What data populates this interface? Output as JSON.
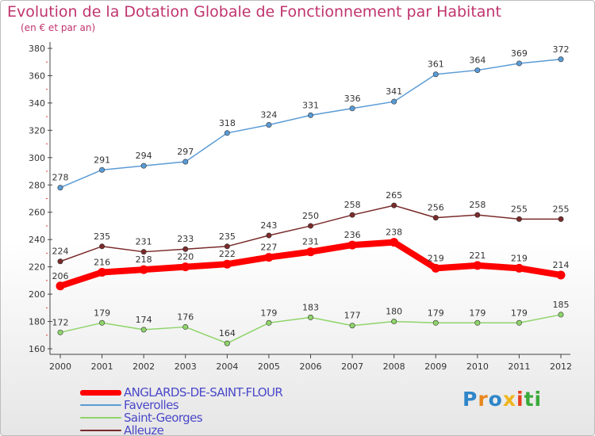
{
  "title": "Evolution de la Dotation Globale de Fonctionnement par Habitant",
  "subtitle": "(en € et par an)",
  "logo": {
    "letters": [
      "P",
      "r",
      "o",
      "x",
      "i",
      "ti"
    ],
    "colors": [
      "#2e86c8",
      "#e8871e",
      "#2e86c8",
      "#f0b41c",
      "#e6401e",
      "#3aaa3a"
    ]
  },
  "chart_data": {
    "type": "line",
    "x": [
      "2000",
      "2001",
      "2002",
      "2003",
      "2004",
      "2005",
      "2006",
      "2007",
      "2008",
      "2009",
      "2010",
      "2011",
      "2012"
    ],
    "ylim": [
      160,
      380
    ],
    "yticks": [
      160,
      180,
      200,
      220,
      240,
      260,
      280,
      300,
      320,
      340,
      360,
      380
    ],
    "grid": false,
    "legend_position": "bottom-left",
    "series": [
      {
        "name": "Faverolles",
        "color": "#5a9bd5",
        "values": [
          278,
          291,
          294,
          297,
          318,
          324,
          331,
          336,
          341,
          361,
          364,
          369,
          372
        ]
      },
      {
        "name": "Alleuze",
        "color": "#7a2a2a",
        "values": [
          224,
          235,
          231,
          233,
          235,
          243,
          250,
          258,
          265,
          256,
          258,
          255,
          255
        ]
      },
      {
        "name": "Saint-Georges",
        "color": "#8fd46a",
        "values": [
          172,
          179,
          174,
          176,
          164,
          179,
          183,
          177,
          180,
          179,
          179,
          179,
          185
        ]
      },
      {
        "name": "ANGLARDS-DE-SAINT-FLOUR",
        "color": "#ff0000",
        "values": [
          206,
          216,
          218,
          220,
          222,
          227,
          231,
          236,
          238,
          219,
          221,
          219,
          214
        ],
        "highlight": true
      }
    ],
    "legend_order": [
      "ANGLARDS-DE-SAINT-FLOUR",
      "Faverolles",
      "Saint-Georges",
      "Alleuze"
    ]
  }
}
